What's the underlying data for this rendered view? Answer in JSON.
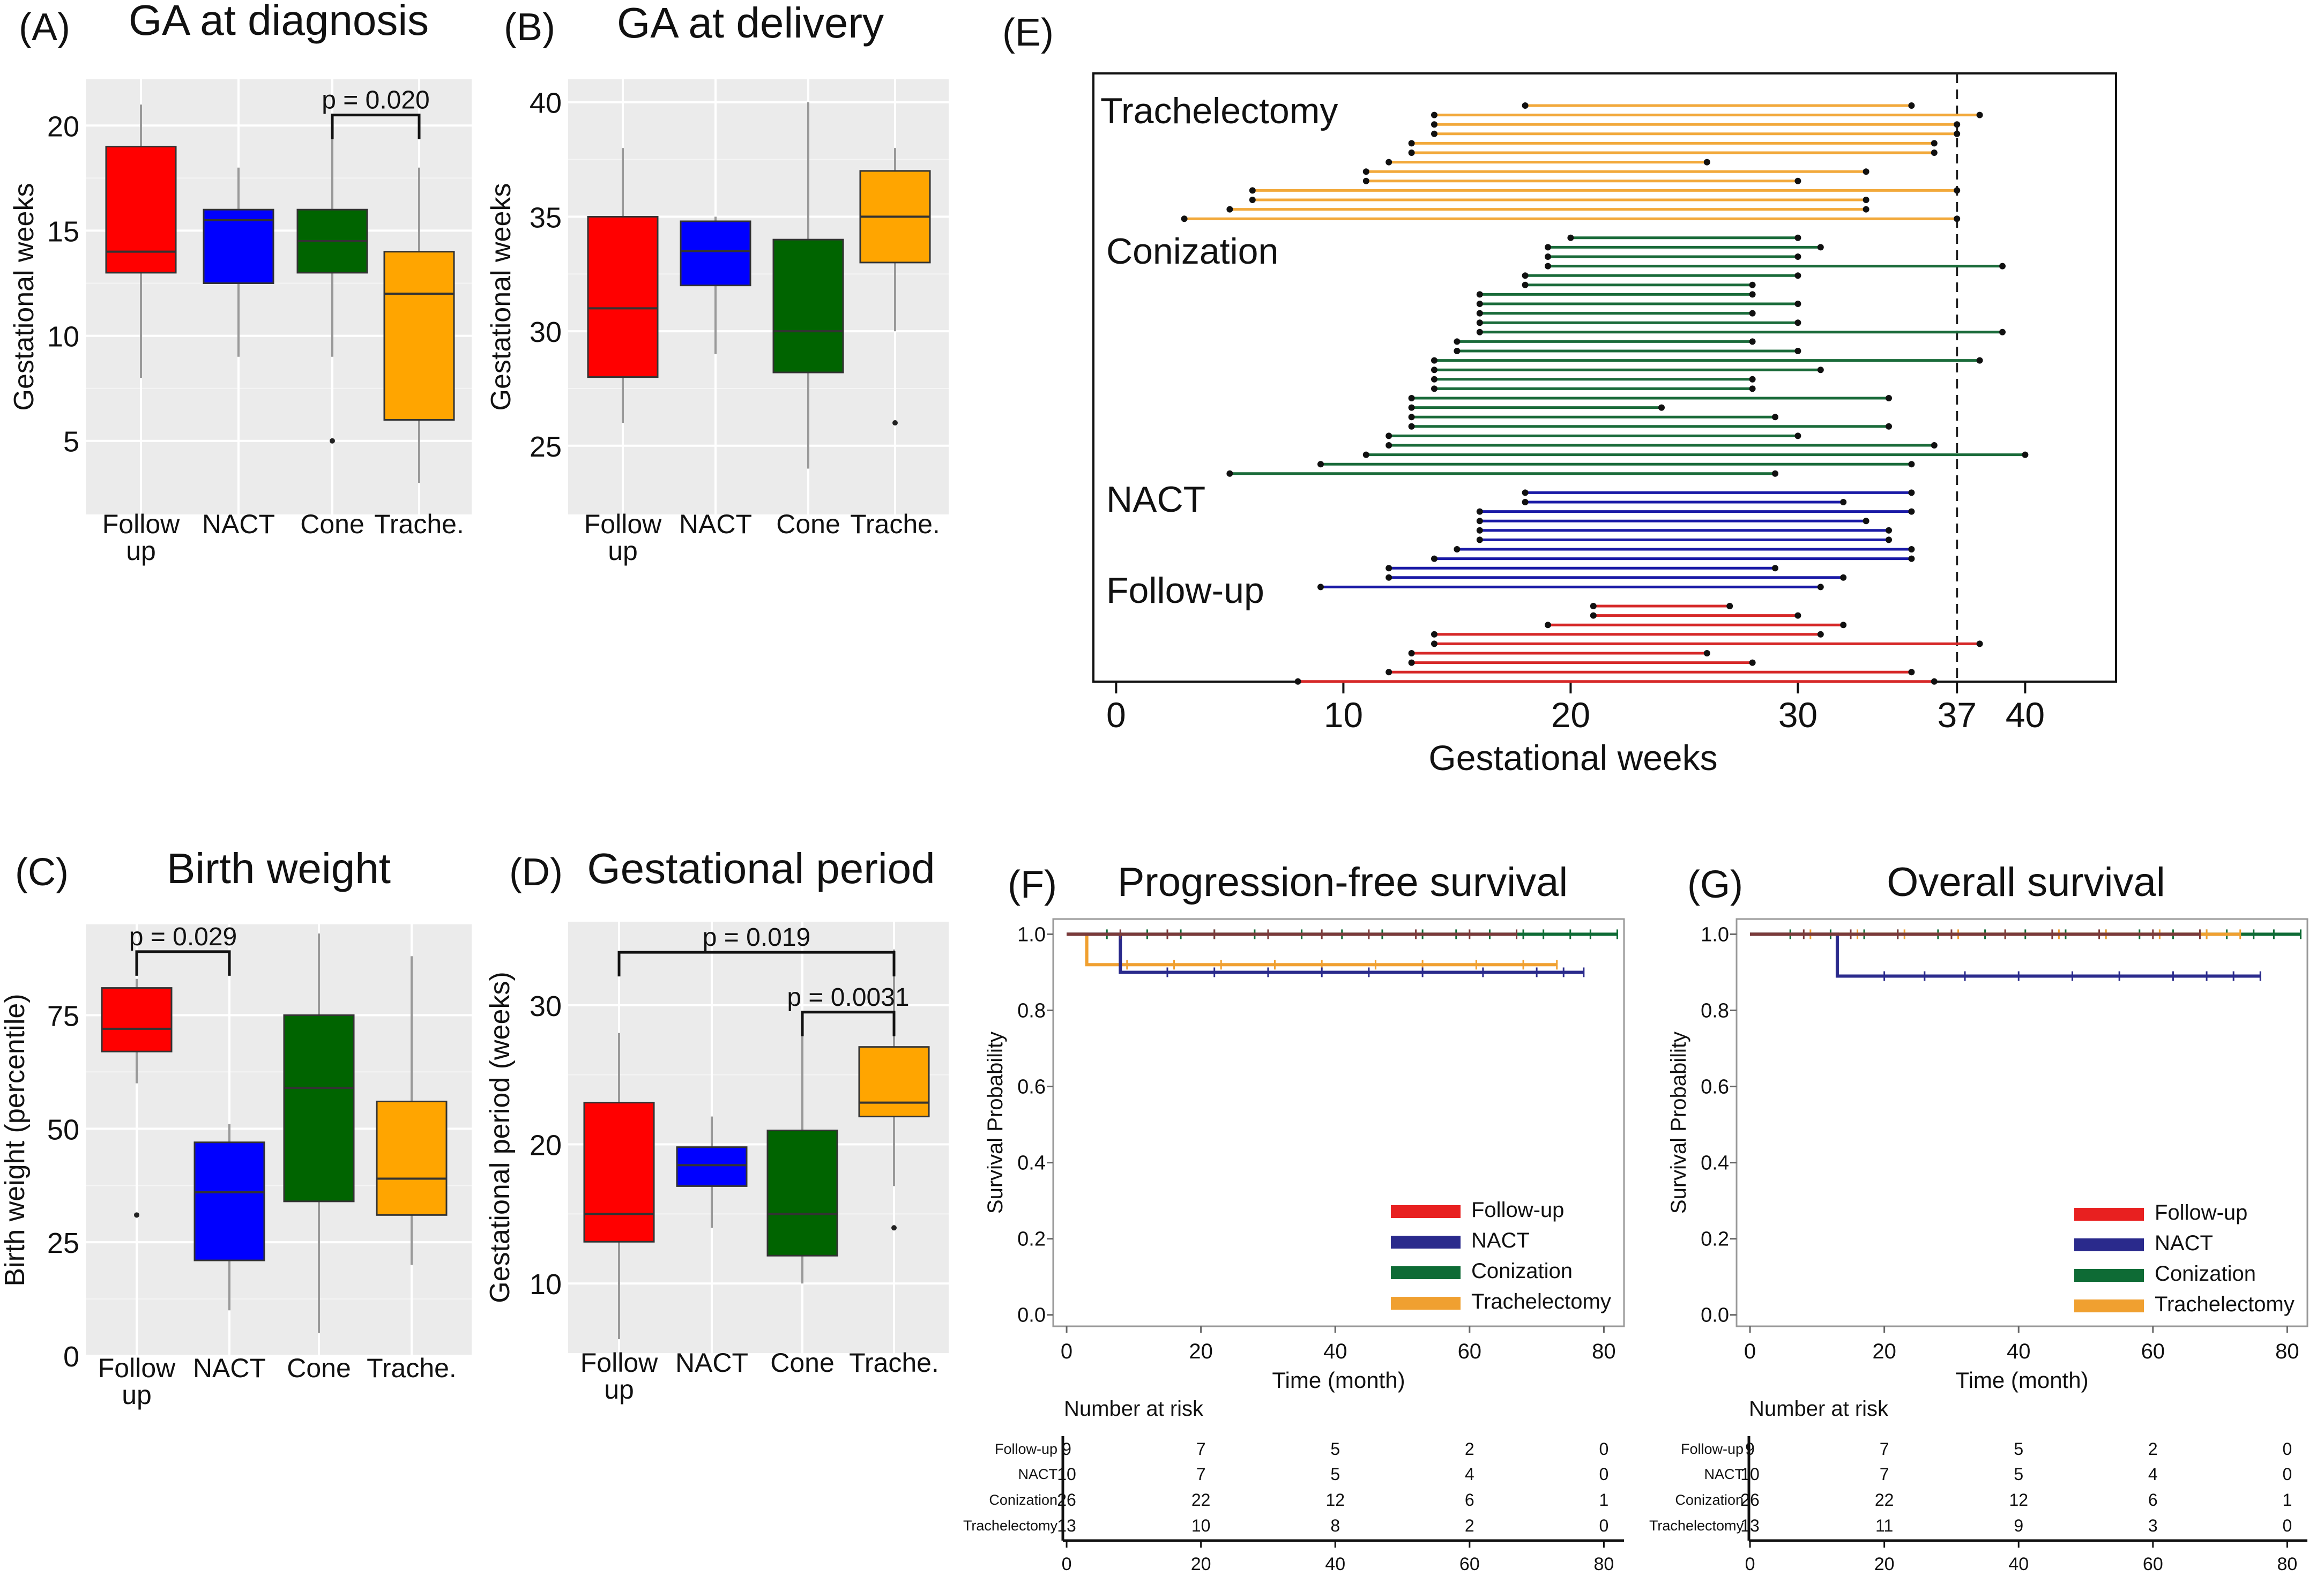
{
  "chart_data": [
    {
      "id": "A",
      "type": "box",
      "panel_label": "(A)",
      "title": "GA at diagnosis",
      "ylabel": "Gestational weeks",
      "ylim": [
        1.5,
        22.2
      ],
      "yticks": [
        5,
        10,
        15,
        20
      ],
      "categories": [
        {
          "tick": "Follow",
          "tick2": "up",
          "color": "#ff0000",
          "whisker_low": 8,
          "q1": 13,
          "median": 14,
          "q3": 19,
          "whisker_high": 21,
          "outliers": []
        },
        {
          "tick": "NACT",
          "tick2": "",
          "color": "#0000ff",
          "whisker_low": 9,
          "q1": 12.5,
          "median": 15.5,
          "q3": 16,
          "whisker_high": 18,
          "outliers": []
        },
        {
          "tick": "Cone",
          "tick2": "",
          "color": "#006400",
          "whisker_low": 9,
          "q1": 13,
          "median": 14.5,
          "q3": 16,
          "whisker_high": 20,
          "outliers": [
            5
          ]
        },
        {
          "tick": "Trache.",
          "tick2": "",
          "color": "#ffa500",
          "whisker_low": 3,
          "q1": 6,
          "median": 12,
          "q3": 14,
          "whisker_high": 18,
          "outliers": []
        }
      ],
      "brackets": [
        {
          "from": 2,
          "to": 3,
          "y": 20.5,
          "label": "p = 0.020"
        }
      ]
    },
    {
      "id": "B",
      "type": "box",
      "panel_label": "(B)",
      "title": "GA at delivery",
      "ylabel": "Gestational weeks",
      "ylim": [
        22,
        41
      ],
      "yticks": [
        25,
        30,
        35,
        40
      ],
      "categories": [
        {
          "tick": "Follow",
          "tick2": "up",
          "color": "#ff0000",
          "whisker_low": 26,
          "q1": 28,
          "median": 31,
          "q3": 35,
          "whisker_high": 38,
          "outliers": []
        },
        {
          "tick": "NACT",
          "tick2": "",
          "color": "#0000ff",
          "whisker_low": 29,
          "q1": 32,
          "median": 33.5,
          "q3": 34.8,
          "whisker_high": 35,
          "outliers": []
        },
        {
          "tick": "Cone",
          "tick2": "",
          "color": "#006400",
          "whisker_low": 24,
          "q1": 28.2,
          "median": 30,
          "q3": 34,
          "whisker_high": 40,
          "outliers": []
        },
        {
          "tick": "Trache.",
          "tick2": "",
          "color": "#ffa500",
          "whisker_low": 30,
          "q1": 33,
          "median": 35,
          "q3": 37,
          "whisker_high": 38,
          "outliers": [
            26
          ]
        }
      ],
      "brackets": []
    },
    {
      "id": "C",
      "type": "box",
      "panel_label": "(C)",
      "title": "Birth weight",
      "ylabel": "Birth weight (percentile)",
      "ylim": [
        0,
        95
      ],
      "yticks": [
        0,
        25,
        50,
        75
      ],
      "categories": [
        {
          "tick": "Follow",
          "tick2": "up",
          "color": "#ff0000",
          "whisker_low": 60,
          "q1": 67,
          "median": 72,
          "q3": 81,
          "whisker_high": 83,
          "outliers": [
            31
          ]
        },
        {
          "tick": "NACT",
          "tick2": "",
          "color": "#0000ff",
          "whisker_low": 10,
          "q1": 21,
          "median": 36,
          "q3": 47,
          "whisker_high": 51,
          "outliers": []
        },
        {
          "tick": "Cone",
          "tick2": "",
          "color": "#006400",
          "whisker_low": 5,
          "q1": 34,
          "median": 59,
          "q3": 75,
          "whisker_high": 93,
          "outliers": []
        },
        {
          "tick": "Trache.",
          "tick2": "",
          "color": "#ffa500",
          "whisker_low": 20,
          "q1": 31,
          "median": 39,
          "q3": 56,
          "whisker_high": 88,
          "outliers": []
        }
      ],
      "brackets": [
        {
          "from": 0,
          "to": 1,
          "y": 89,
          "label": "p = 0.029"
        }
      ]
    },
    {
      "id": "D",
      "type": "box",
      "panel_label": "(D)",
      "title": "Gestational period",
      "ylabel": "Gestational period (weeks)",
      "ylim": [
        5,
        36
      ],
      "yticks": [
        10,
        20,
        30
      ],
      "categories": [
        {
          "tick": "Follow",
          "tick2": "up",
          "color": "#ff0000",
          "whisker_low": 6,
          "q1": 13,
          "median": 15,
          "q3": 23,
          "whisker_high": 28,
          "outliers": []
        },
        {
          "tick": "NACT",
          "tick2": "",
          "color": "#0000ff",
          "whisker_low": 14,
          "q1": 17,
          "median": 18.5,
          "q3": 19.8,
          "whisker_high": 22,
          "outliers": []
        },
        {
          "tick": "Cone",
          "tick2": "",
          "color": "#006400",
          "whisker_low": 10,
          "q1": 12,
          "median": 15,
          "q3": 21,
          "whisker_high": 29,
          "outliers": []
        },
        {
          "tick": "Trache.",
          "tick2": "",
          "color": "#ffa500",
          "whisker_low": 17,
          "q1": 22,
          "median": 23,
          "q3": 27,
          "whisker_high": 34,
          "outliers": [
            14
          ]
        }
      ],
      "brackets": [
        {
          "from": 0,
          "to": 3,
          "y": 33.8,
          "label": "p = 0.019"
        },
        {
          "from": 2,
          "to": 3,
          "y": 29.5,
          "label": "p = 0.0031"
        }
      ]
    },
    {
      "id": "E",
      "type": "range_dumbbell",
      "panel_label": "(E)",
      "xlabel": "Gestational weeks",
      "xlim": [
        -1,
        44
      ],
      "xticks": [
        0,
        10,
        20,
        30,
        37,
        40
      ],
      "ref_line": 37,
      "groups": [
        {
          "name": "Trachelectomy",
          "color": "#ef7a2e",
          "line_color": "#f2a93b",
          "intervals": [
            [
              18,
              35
            ],
            [
              14,
              38
            ],
            [
              14,
              37
            ],
            [
              14,
              37
            ],
            [
              13,
              36
            ],
            [
              13,
              36
            ],
            [
              12,
              26
            ],
            [
              11,
              33
            ],
            [
              11,
              30
            ],
            [
              6,
              37
            ],
            [
              6,
              33
            ],
            [
              5,
              33
            ],
            [
              3,
              37
            ]
          ]
        },
        {
          "name": "Conization",
          "color": "#1a6b3a",
          "line_color": "#1a6b3a",
          "intervals": [
            [
              20,
              30
            ],
            [
              19,
              31
            ],
            [
              19,
              30
            ],
            [
              19,
              39
            ],
            [
              18,
              30
            ],
            [
              18,
              28
            ],
            [
              16,
              28
            ],
            [
              16,
              30
            ],
            [
              16,
              28
            ],
            [
              16,
              30
            ],
            [
              16,
              39
            ],
            [
              15,
              28
            ],
            [
              15,
              30
            ],
            [
              14,
              38
            ],
            [
              14,
              31
            ],
            [
              14,
              28
            ],
            [
              14,
              28
            ],
            [
              13,
              34
            ],
            [
              13,
              24
            ],
            [
              13,
              29
            ],
            [
              13,
              34
            ],
            [
              12,
              30
            ],
            [
              12,
              36
            ],
            [
              11,
              40
            ],
            [
              9,
              35
            ],
            [
              5,
              29
            ]
          ]
        },
        {
          "name": "NACT",
          "color": "#1a1aa6",
          "line_color": "#1a1aa6",
          "intervals": [
            [
              18,
              35
            ],
            [
              18,
              32
            ],
            [
              16,
              35
            ],
            [
              16,
              33
            ],
            [
              16,
              34
            ],
            [
              16,
              34
            ],
            [
              15,
              35
            ],
            [
              14,
              35
            ],
            [
              12,
              29
            ],
            [
              12,
              32
            ],
            [
              9,
              31
            ]
          ]
        },
        {
          "name": "Follow-up",
          "color": "#d62828",
          "line_color": "#d62828",
          "intervals": [
            [
              21,
              27
            ],
            [
              21,
              30
            ],
            [
              19,
              32
            ],
            [
              14,
              31
            ],
            [
              14,
              38
            ],
            [
              13,
              26
            ],
            [
              13,
              28
            ],
            [
              12,
              35
            ],
            [
              8,
              36
            ]
          ]
        }
      ]
    },
    {
      "id": "F",
      "type": "km",
      "panel_label": "(F)",
      "title": "Progression-free survival",
      "ylabel": "Survival Probability",
      "xlabel": "Time (month)",
      "xlim": [
        -2,
        83
      ],
      "ylim": [
        -0.03,
        1.04
      ],
      "xticks": [
        0,
        20,
        40,
        60,
        80
      ],
      "yticks": [
        "0.0",
        "0.2",
        "0.4",
        "0.6",
        "0.8",
        "1.0"
      ],
      "legend": [
        "Follow-up",
        "NACT",
        "Conization",
        "Trachelectomy"
      ],
      "series": [
        {
          "name": "Conization",
          "color": "#0e6b35",
          "steps": [
            [
              0,
              1.0
            ],
            [
              82,
              1.0
            ]
          ],
          "censor": [
            6,
            12,
            17,
            22,
            28,
            35,
            41,
            47,
            53,
            58,
            63,
            68,
            71,
            75,
            78,
            82
          ]
        },
        {
          "name": "Trachelectomy",
          "color": "#f0a030",
          "steps": [
            [
              0,
              1.0
            ],
            [
              3,
              1.0
            ],
            [
              3,
              0.92
            ],
            [
              73,
              0.92
            ]
          ],
          "censor": [
            9,
            16,
            23,
            31,
            38,
            46,
            53,
            61,
            68,
            73
          ]
        },
        {
          "name": "NACT",
          "color": "#2a2a8c",
          "steps": [
            [
              0,
              1.0
            ],
            [
              8,
              1.0
            ],
            [
              8,
              0.9
            ],
            [
              77,
              0.9
            ]
          ],
          "censor": [
            15,
            22,
            30,
            38,
            45,
            53,
            62,
            70,
            74,
            77
          ]
        },
        {
          "name": "Follow-up",
          "color": "#7a3a3a",
          "steps": [
            [
              0,
              1.0
            ],
            [
              67,
              1.0
            ]
          ],
          "censor": [
            8,
            15,
            22,
            30,
            38,
            45,
            52,
            60,
            67
          ]
        }
      ],
      "risk_table": {
        "title": "Number at risk",
        "times": [
          "0",
          "20",
          "40",
          "60",
          "80"
        ],
        "rows": [
          {
            "label": "Follow-up",
            "color": "#c0392b",
            "values": [
              "9",
              "7",
              "5",
              "2",
              "0"
            ]
          },
          {
            "label": "NACT",
            "color": "#2c3e9a",
            "values": [
              "10",
              "7",
              "5",
              "4",
              "0"
            ]
          },
          {
            "label": "Conization",
            "color": "#1e7b4a",
            "values": [
              "26",
              "22",
              "12",
              "6",
              "1"
            ]
          },
          {
            "label": "Trachelectomy",
            "color": "#e0a030",
            "values": [
              "13",
              "10",
              "8",
              "2",
              "0"
            ]
          }
        ]
      }
    },
    {
      "id": "G",
      "type": "km",
      "panel_label": "(G)",
      "title": "Overall survival",
      "ylabel": "Survival Probability",
      "xlabel": "Time (month)",
      "xlim": [
        -2,
        83
      ],
      "ylim": [
        -0.03,
        1.04
      ],
      "xticks": [
        0,
        20,
        40,
        60,
        80
      ],
      "yticks": [
        "0.0",
        "0.2",
        "0.4",
        "0.6",
        "0.8",
        "1.0"
      ],
      "legend": [
        "Follow-up",
        "NACT",
        "Conization",
        "Trachelectomy"
      ],
      "series": [
        {
          "name": "Conization",
          "color": "#0e6b35",
          "steps": [
            [
              0,
              1.0
            ],
            [
              82,
              1.0
            ]
          ],
          "censor": [
            6,
            12,
            17,
            22,
            28,
            35,
            41,
            47,
            53,
            58,
            63,
            68,
            71,
            75,
            78,
            82
          ]
        },
        {
          "name": "Trachelectomy",
          "color": "#f0a030",
          "steps": [
            [
              0,
              1.0
            ],
            [
              73,
              1.0
            ]
          ],
          "censor": [
            9,
            16,
            23,
            31,
            38,
            46,
            53,
            61,
            68,
            73
          ]
        },
        {
          "name": "NACT",
          "color": "#2a2a8c",
          "steps": [
            [
              0,
              1.0
            ],
            [
              13,
              1.0
            ],
            [
              13,
              0.89
            ],
            [
              76,
              0.89
            ]
          ],
          "censor": [
            20,
            26,
            32,
            40,
            48,
            55,
            63,
            68,
            72,
            76
          ]
        },
        {
          "name": "Follow-up",
          "color": "#7a3a3a",
          "steps": [
            [
              0,
              1.0
            ],
            [
              67,
              1.0
            ]
          ],
          "censor": [
            8,
            15,
            22,
            30,
            38,
            45,
            52,
            60,
            67
          ]
        }
      ],
      "risk_table": {
        "title": "Number at risk",
        "times": [
          "0",
          "20",
          "40",
          "60",
          "80"
        ],
        "rows": [
          {
            "label": "Follow-up",
            "color": "#c0392b",
            "values": [
              "9",
              "7",
              "5",
              "2",
              "0"
            ]
          },
          {
            "label": "NACT",
            "color": "#2c3e9a",
            "values": [
              "10",
              "7",
              "5",
              "4",
              "0"
            ]
          },
          {
            "label": "Conization",
            "color": "#1e7b4a",
            "values": [
              "26",
              "22",
              "12",
              "6",
              "1"
            ]
          },
          {
            "label": "Trachelectomy",
            "color": "#e0a030",
            "values": [
              "13",
              "11",
              "9",
              "3",
              "0"
            ]
          }
        ]
      }
    }
  ]
}
